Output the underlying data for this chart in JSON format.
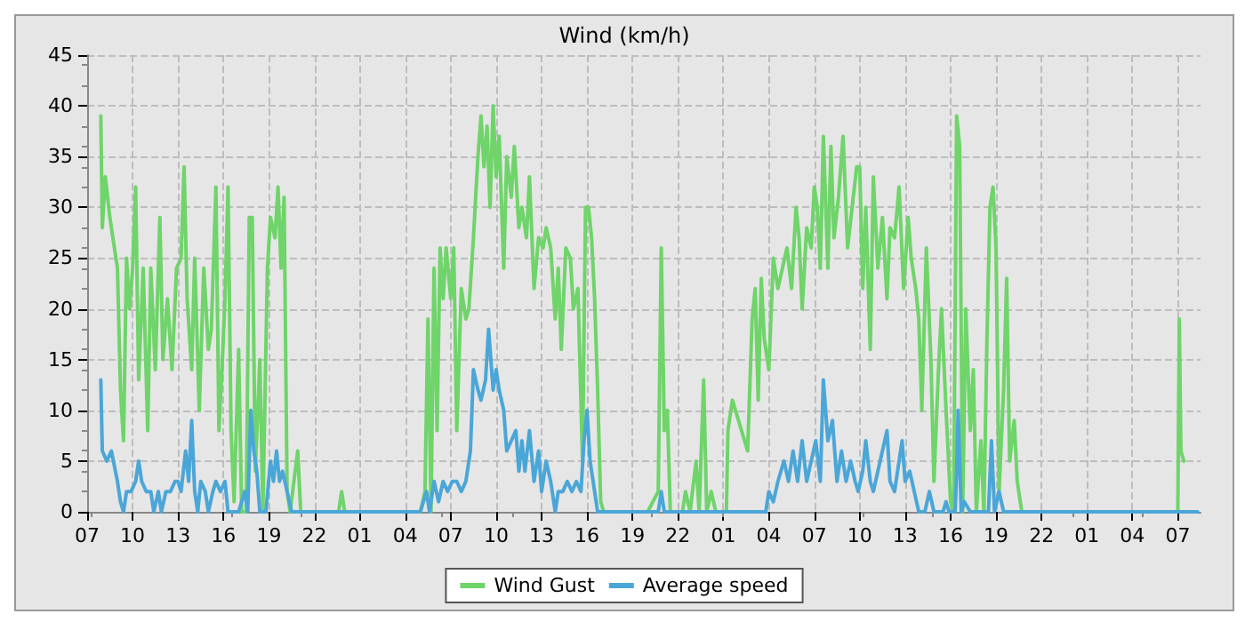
{
  "chart_data": {
    "type": "line",
    "title": "Wind (km/h)",
    "xlim": [
      "--01-01T07:00",
      "--01-04T08:30"
    ],
    "xticks": [
      {
        "value": "--01-01T07:00",
        "label": "07"
      },
      {
        "value": "--01-01T10:00",
        "label": "10"
      },
      {
        "value": "--01-01T13:00",
        "label": "13"
      },
      {
        "value": "--01-01T16:00",
        "label": "16"
      },
      {
        "value": "--01-01T19:00",
        "label": "19"
      },
      {
        "value": "--01-01T22:00",
        "label": "22"
      },
      {
        "value": "--01-02T01:00",
        "label": "01"
      },
      {
        "value": "--01-02T04:00",
        "label": "04"
      },
      {
        "value": "--01-02T07:00",
        "label": "07"
      },
      {
        "value": "--01-02T10:00",
        "label": "10"
      },
      {
        "value": "--01-02T13:00",
        "label": "13"
      },
      {
        "value": "--01-02T16:00",
        "label": "16"
      },
      {
        "value": "--01-02T19:00",
        "label": "19"
      },
      {
        "value": "--01-02T22:00",
        "label": "22"
      },
      {
        "value": "--01-03T01:00",
        "label": "01"
      },
      {
        "value": "--01-03T04:00",
        "label": "04"
      },
      {
        "value": "--01-03T07:00",
        "label": "07"
      },
      {
        "value": "--01-03T10:00",
        "label": "10"
      },
      {
        "value": "--01-03T13:00",
        "label": "13"
      },
      {
        "value": "--01-03T16:00",
        "label": "16"
      },
      {
        "value": "--01-03T19:00",
        "label": "19"
      },
      {
        "value": "--01-03T22:00",
        "label": "22"
      },
      {
        "value": "--01-04T01:00",
        "label": "01"
      },
      {
        "value": "--01-04T04:00",
        "label": "04"
      },
      {
        "value": "--01-04T07:00",
        "label": "07"
      }
    ],
    "ylim": [
      0,
      45
    ],
    "yticks": [
      0,
      5,
      10,
      15,
      20,
      25,
      30,
      35,
      40,
      45
    ],
    "grid": true,
    "legend": "bottom",
    "marker": "none",
    "line_style": "solid",
    "series": [
      {
        "name": "Wind Gust",
        "color": "#6fd46a",
        "x": [
          "--01-01T07:54",
          "--01-01T08:00",
          "--01-01T08:12",
          "--01-01T08:30",
          "--01-01T08:42",
          "--01-01T09:00",
          "--01-01T09:12",
          "--01-01T09:24",
          "--01-01T09:36",
          "--01-01T09:48",
          "--01-01T10:00",
          "--01-01T10:12",
          "--01-01T10:24",
          "--01-01T10:42",
          "--01-01T11:00",
          "--01-01T11:12",
          "--01-01T11:30",
          "--01-01T11:48",
          "--01-01T12:00",
          "--01-01T12:18",
          "--01-01T12:36",
          "--01-01T12:54",
          "--01-01T13:12",
          "--01-01T13:24",
          "--01-01T13:36",
          "--01-01T13:54",
          "--01-01T14:06",
          "--01-01T14:24",
          "--01-01T14:42",
          "--01-01T15:00",
          "--01-01T15:12",
          "--01-01T15:30",
          "--01-01T15:42",
          "--01-01T15:54",
          "--01-01T16:06",
          "--01-01T16:18",
          "--01-01T16:30",
          "--01-01T16:42",
          "--01-01T17:00",
          "--01-01T17:12",
          "--01-01T17:30",
          "--01-01T17:42",
          "--01-01T17:54",
          "--01-01T18:06",
          "--01-01T18:24",
          "--01-01T18:36",
          "--01-01T18:54",
          "--01-01T19:06",
          "--01-01T19:24",
          "--01-01T19:36",
          "--01-01T19:48",
          "--01-01T20:00",
          "--01-01T20:12",
          "--01-01T20:24",
          "--01-01T20:54",
          "--01-01T21:06",
          "--01-01T23:36",
          "--01-01T23:48",
          "--01-02T00:00",
          "--01-02T05:00",
          "--01-02T05:18",
          "--01-02T05:30",
          "--01-02T05:42",
          "--01-02T05:54",
          "--01-02T06:06",
          "--01-02T06:18",
          "--01-02T06:30",
          "--01-02T06:42",
          "--01-02T07:00",
          "--01-02T07:12",
          "--01-02T07:24",
          "--01-02T07:42",
          "--01-02T08:00",
          "--01-02T08:12",
          "--01-02T08:30",
          "--01-02T08:48",
          "--01-02T09:00",
          "--01-02T09:12",
          "--01-02T09:24",
          "--01-02T09:36",
          "--01-02T09:48",
          "--01-02T10:00",
          "--01-02T10:12",
          "--01-02T10:30",
          "--01-02T10:42",
          "--01-02T11:00",
          "--01-02T11:12",
          "--01-02T11:30",
          "--01-02T11:42",
          "--01-02T12:00",
          "--01-02T12:12",
          "--01-02T12:30",
          "--01-02T12:48",
          "--01-02T13:06",
          "--01-02T13:18",
          "--01-02T13:36",
          "--01-02T13:54",
          "--01-02T14:06",
          "--01-02T14:18",
          "--01-02T14:36",
          "--01-02T14:54",
          "--01-02T15:06",
          "--01-02T15:24",
          "--01-02T15:42",
          "--01-02T15:54",
          "--01-02T16:06",
          "--01-02T16:18",
          "--01-02T16:30",
          "--01-02T16:42",
          "--01-02T16:54",
          "--01-02T17:06",
          "--01-02T20:00",
          "--01-02T20:42",
          "--01-02T20:54",
          "--01-02T21:06",
          "--01-02T21:18",
          "--01-02T21:30",
          "--01-02T22:18",
          "--01-02T22:30",
          "--01-02T22:48",
          "--01-02T23:12",
          "--01-02T23:24",
          "--01-02T23:42",
          "--01-02T23:54",
          "--01-03T00:12",
          "--01-03T00:30",
          "--01-03T01:12",
          "--01-03T01:18",
          "--01-03T01:36",
          "--01-03T02:00",
          "--01-03T02:36",
          "--01-03T02:54",
          "--01-03T03:06",
          "--01-03T03:18",
          "--01-03T03:30",
          "--01-03T03:42",
          "--01-03T04:00",
          "--01-03T04:18",
          "--01-03T04:36",
          "--01-03T04:54",
          "--01-03T05:12",
          "--01-03T05:30",
          "--01-03T05:48",
          "--01-03T06:00",
          "--01-03T06:12",
          "--01-03T06:30",
          "--01-03T06:48",
          "--01-03T07:00",
          "--01-03T07:12",
          "--01-03T07:24",
          "--01-03T07:36",
          "--01-03T07:54",
          "--01-03T08:06",
          "--01-03T08:18",
          "--01-03T08:36",
          "--01-03T08:54",
          "--01-03T09:12",
          "--01-03T09:30",
          "--01-03T09:48",
          "--01-03T10:00",
          "--01-03T10:12",
          "--01-03T10:24",
          "--01-03T10:42",
          "--01-03T10:54",
          "--01-03T11:12",
          "--01-03T11:30",
          "--01-03T11:48",
          "--01-03T12:00",
          "--01-03T12:18",
          "--01-03T12:36",
          "--01-03T12:54",
          "--01-03T13:12",
          "--01-03T13:24",
          "--01-03T13:42",
          "--01-03T13:54",
          "--01-03T14:06",
          "--01-03T14:24",
          "--01-03T14:42",
          "--01-03T14:54",
          "--01-03T15:12",
          "--01-03T15:24",
          "--01-03T15:42",
          "--01-03T16:00",
          "--01-03T16:12",
          "--01-03T16:24",
          "--01-03T16:36",
          "--01-03T16:48",
          "--01-03T17:00",
          "--01-03T17:18",
          "--01-03T17:30",
          "--01-03T17:42",
          "--01-03T18:00",
          "--01-03T18:12",
          "--01-03T18:24",
          "--01-03T18:36",
          "--01-03T18:48",
          "--01-03T19:00",
          "--01-03T19:12",
          "--01-03T19:30",
          "--01-03T19:42",
          "--01-03T19:54",
          "--01-03T20:12",
          "--01-03T20:24",
          "--01-03T20:42",
          "--01-04T07:00",
          "--01-04T07:06",
          "--01-04T07:12",
          "--01-04T07:24"
        ],
        "values": [
          39,
          28,
          33,
          29,
          27,
          24,
          12,
          7,
          25,
          20,
          24,
          32,
          13,
          24,
          8,
          24,
          14,
          29,
          15,
          21,
          14,
          24,
          25,
          34,
          21,
          14,
          25,
          10,
          24,
          16,
          18,
          32,
          8,
          14,
          21,
          32,
          8,
          1,
          16,
          0,
          0,
          29,
          29,
          4,
          15,
          0,
          24,
          29,
          27,
          32,
          24,
          31,
          2,
          0,
          6,
          0,
          0,
          2,
          0,
          0,
          2,
          19,
          0,
          24,
          8,
          26,
          21,
          26,
          21,
          26,
          8,
          22,
          19,
          20,
          27,
          35,
          39,
          34,
          38,
          30,
          40,
          33,
          37,
          24,
          35,
          31,
          36,
          28,
          30,
          27,
          33,
          22,
          27,
          26,
          28,
          26,
          19,
          24,
          16,
          26,
          25,
          20,
          22,
          5,
          30,
          30,
          27,
          21,
          12,
          1,
          0,
          0,
          2,
          26,
          8,
          10,
          0,
          0,
          2,
          0,
          5,
          0,
          13,
          0,
          2,
          0,
          0,
          8,
          11,
          9,
          6,
          19,
          22,
          11,
          23,
          17,
          14,
          25,
          22,
          24,
          26,
          22,
          30,
          27,
          20,
          28,
          26,
          32,
          30,
          24,
          37,
          24,
          36,
          27,
          31,
          37,
          26,
          30,
          34,
          34,
          22,
          30,
          16,
          33,
          24,
          29,
          21,
          28,
          27,
          32,
          22,
          29,
          25,
          22,
          19,
          10,
          26,
          15,
          3,
          14,
          20,
          10,
          1,
          0,
          39,
          36,
          0,
          20,
          8,
          14,
          0,
          7,
          0,
          17,
          30,
          32,
          26,
          2,
          12,
          23,
          5,
          9,
          3,
          0,
          0,
          19,
          6,
          5
        ]
      },
      {
        "name": "Average speed",
        "color": "#4ba6d8",
        "x": [
          "--01-01T07:54",
          "--01-01T08:00",
          "--01-01T08:18",
          "--01-01T08:36",
          "--01-01T09:00",
          "--01-01T09:12",
          "--01-01T09:24",
          "--01-01T09:36",
          "--01-01T09:54",
          "--01-01T10:12",
          "--01-01T10:24",
          "--01-01T10:36",
          "--01-01T10:54",
          "--01-01T11:12",
          "--01-01T11:24",
          "--01-01T11:42",
          "--01-01T11:54",
          "--01-01T12:12",
          "--01-01T12:30",
          "--01-01T12:48",
          "--01-01T13:00",
          "--01-01T13:12",
          "--01-01T13:30",
          "--01-01T13:42",
          "--01-01T13:54",
          "--01-01T14:06",
          "--01-01T14:18",
          "--01-01T14:30",
          "--01-01T14:48",
          "--01-01T15:00",
          "--01-01T15:18",
          "--01-01T15:30",
          "--01-01T15:48",
          "--01-01T16:06",
          "--01-01T16:18",
          "--01-01T17:00",
          "--01-01T17:24",
          "--01-01T17:36",
          "--01-01T17:48",
          "--01-01T18:00",
          "--01-01T18:12",
          "--01-01T18:24",
          "--01-01T18:48",
          "--01-01T19:06",
          "--01-01T19:18",
          "--01-01T19:30",
          "--01-01T19:42",
          "--01-01T19:54",
          "--01-01T20:12",
          "--01-01T20:30",
          "--01-02T05:00",
          "--01-02T05:24",
          "--01-02T05:36",
          "--01-02T05:54",
          "--01-02T06:12",
          "--01-02T06:30",
          "--01-02T06:48",
          "--01-02T07:06",
          "--01-02T07:24",
          "--01-02T07:42",
          "--01-02T08:00",
          "--01-02T08:18",
          "--01-02T08:30",
          "--01-02T08:48",
          "--01-02T09:00",
          "--01-02T09:18",
          "--01-02T09:30",
          "--01-02T09:48",
          "--01-02T10:00",
          "--01-02T10:12",
          "--01-02T10:30",
          "--01-02T10:42",
          "--01-02T11:00",
          "--01-02T11:18",
          "--01-02T11:30",
          "--01-02T11:42",
          "--01-02T11:54",
          "--01-02T12:12",
          "--01-02T12:30",
          "--01-02T12:48",
          "--01-02T13:00",
          "--01-02T13:18",
          "--01-02T13:36",
          "--01-02T13:54",
          "--01-02T14:06",
          "--01-02T14:24",
          "--01-02T14:42",
          "--01-02T15:00",
          "--01-02T15:18",
          "--01-02T15:36",
          "--01-02T15:48",
          "--01-02T16:00",
          "--01-02T16:12",
          "--01-02T16:30",
          "--01-02T16:42",
          "--01-02T20:42",
          "--01-02T20:54",
          "--01-02T21:06",
          "--01-03T03:48",
          "--01-03T04:00",
          "--01-03T04:18",
          "--01-03T04:36",
          "--01-03T05:00",
          "--01-03T05:18",
          "--01-03T05:36",
          "--01-03T05:54",
          "--01-03T06:12",
          "--01-03T06:30",
          "--01-03T06:48",
          "--01-03T07:06",
          "--01-03T07:24",
          "--01-03T07:36",
          "--01-03T07:54",
          "--01-03T08:12",
          "--01-03T08:30",
          "--01-03T08:48",
          "--01-03T09:06",
          "--01-03T09:24",
          "--01-03T09:42",
          "--01-03T09:54",
          "--01-03T10:12",
          "--01-03T10:24",
          "--01-03T10:42",
          "--01-03T10:54",
          "--01-03T11:12",
          "--01-03T11:30",
          "--01-03T11:48",
          "--01-03T12:00",
          "--01-03T12:18",
          "--01-03T12:30",
          "--01-03T12:48",
          "--01-03T13:00",
          "--01-03T13:18",
          "--01-03T13:36",
          "--01-03T13:54",
          "--01-03T14:18",
          "--01-03T14:36",
          "--01-03T14:54",
          "--01-03T15:30",
          "--01-03T15:42",
          "--01-03T15:54",
          "--01-03T16:18",
          "--01-03T16:24",
          "--01-03T16:30",
          "--01-03T16:42",
          "--01-03T16:54",
          "--01-03T17:18",
          "--01-03T18:30",
          "--01-03T18:42",
          "--01-03T18:54",
          "--01-03T19:12",
          "--01-03T19:30",
          "--01-04T07:00",
          "--01-04T08:18"
        ],
        "values": [
          13,
          6,
          5,
          6,
          3,
          1,
          0,
          2,
          2,
          3,
          5,
          3,
          2,
          2,
          0,
          2,
          0,
          2,
          2,
          3,
          3,
          2,
          6,
          3,
          9,
          2,
          0,
          3,
          2,
          0,
          2,
          3,
          2,
          3,
          0,
          0,
          2,
          0,
          10,
          6,
          4,
          0,
          0,
          5,
          3,
          6,
          3,
          4,
          2,
          0,
          0,
          2,
          0,
          3,
          1,
          3,
          2,
          3,
          3,
          2,
          3,
          6,
          14,
          12,
          11,
          13,
          18,
          12,
          14,
          12,
          10,
          6,
          7,
          8,
          4,
          7,
          4,
          8,
          3,
          6,
          2,
          5,
          3,
          0,
          2,
          2,
          3,
          2,
          3,
          2,
          7,
          10,
          5,
          2,
          0,
          0,
          2,
          0,
          0,
          2,
          1,
          3,
          5,
          3,
          6,
          3,
          7,
          3,
          5,
          7,
          3,
          13,
          7,
          9,
          3,
          6,
          3,
          5,
          3,
          2,
          4,
          7,
          3,
          2,
          4,
          6,
          8,
          3,
          2,
          4,
          7,
          3,
          4,
          2,
          0,
          0,
          2,
          0,
          0,
          1,
          0,
          0,
          4,
          10,
          0,
          1,
          0,
          0,
          7,
          0,
          2,
          0,
          0,
          0
        ]
      }
    ]
  }
}
